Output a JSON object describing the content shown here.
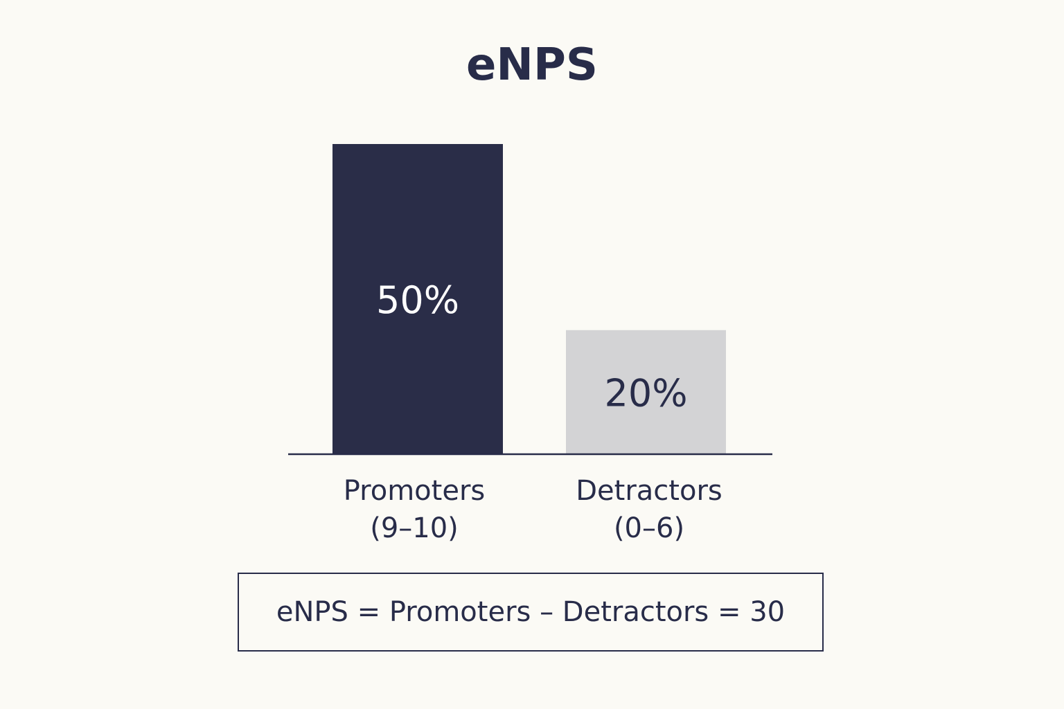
{
  "chart_data": {
    "type": "bar",
    "title": "eNPS",
    "categories": [
      "Promoters",
      "Detractors"
    ],
    "category_sublabels": [
      "(9–10)",
      "(0–6)"
    ],
    "values": [
      50,
      20
    ],
    "value_labels": [
      "50%",
      "20%"
    ],
    "unit": "%",
    "xlabel": "",
    "ylabel": "",
    "grid": false,
    "colors": {
      "bars": [
        "#2a2d48",
        "#d3d3d5"
      ],
      "value_label_text": [
        "#ffffff",
        "#282c49"
      ],
      "axis": "#282c49",
      "text": "#282c49",
      "background": "#fbfaf5"
    }
  },
  "formula": "eNPS = Promoters – Detractors = 30"
}
